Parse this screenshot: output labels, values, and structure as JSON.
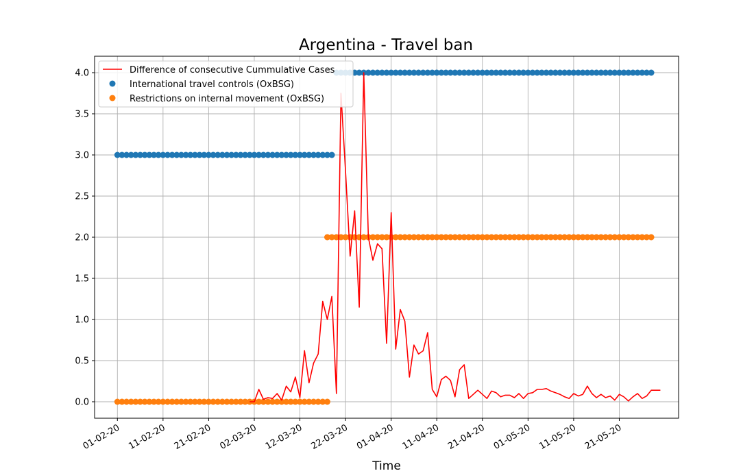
{
  "chart_data": {
    "type": "line",
    "title": "Argentina - Travel ban",
    "xlabel": "Time",
    "ylabel": "",
    "x_start_date": "2020-02-01",
    "xlim": [
      "2020-01-27",
      "2020-06-03"
    ],
    "ylim": [
      -0.2,
      4.2
    ],
    "grid": true,
    "legend_position": "upper-left",
    "x_tick_labels": [
      "01-02-20",
      "11-02-20",
      "21-02-20",
      "02-03-20",
      "12-03-20",
      "22-03-20",
      "01-04-20",
      "11-04-20",
      "21-04-20",
      "01-05-20",
      "11-05-20",
      "21-05-20"
    ],
    "x_tick_dates": [
      "2020-02-01",
      "2020-02-11",
      "2020-02-21",
      "2020-03-02",
      "2020-03-12",
      "2020-03-22",
      "2020-04-01",
      "2020-04-11",
      "2020-04-21",
      "2020-05-01",
      "2020-05-11",
      "2020-05-21"
    ],
    "y_ticks": [
      0.0,
      0.5,
      1.0,
      1.5,
      2.0,
      2.5,
      3.0,
      3.5,
      4.0
    ],
    "y_tick_labels": [
      "0.0",
      "0.5",
      "1.0",
      "1.5",
      "2.0",
      "2.5",
      "3.0",
      "3.5",
      "4.0"
    ],
    "series": [
      {
        "name": "Difference of consecutive Cummulative Cases",
        "kind": "line",
        "color": "#ff0000",
        "x": [
          "2020-03-01",
          "2020-03-02",
          "2020-03-03",
          "2020-03-04",
          "2020-03-05",
          "2020-03-06",
          "2020-03-07",
          "2020-03-08",
          "2020-03-09",
          "2020-03-10",
          "2020-03-11",
          "2020-03-12",
          "2020-03-13",
          "2020-03-14",
          "2020-03-15",
          "2020-03-16",
          "2020-03-17",
          "2020-03-18",
          "2020-03-19",
          "2020-03-20",
          "2020-03-21",
          "2020-03-22",
          "2020-03-23",
          "2020-03-24",
          "2020-03-25",
          "2020-03-26",
          "2020-03-27",
          "2020-03-28",
          "2020-03-29",
          "2020-03-30",
          "2020-03-31",
          "2020-04-01",
          "2020-04-02",
          "2020-04-03",
          "2020-04-04",
          "2020-04-05",
          "2020-04-06",
          "2020-04-07",
          "2020-04-08",
          "2020-04-09",
          "2020-04-10",
          "2020-04-11",
          "2020-04-12",
          "2020-04-13",
          "2020-04-14",
          "2020-04-15",
          "2020-04-16",
          "2020-04-17",
          "2020-04-18",
          "2020-04-19",
          "2020-04-20",
          "2020-04-21",
          "2020-04-22",
          "2020-04-23",
          "2020-04-24",
          "2020-04-25",
          "2020-04-26",
          "2020-04-27",
          "2020-04-28",
          "2020-04-29",
          "2020-04-30",
          "2020-05-01",
          "2020-05-02",
          "2020-05-03",
          "2020-05-04",
          "2020-05-05",
          "2020-05-06",
          "2020-05-07",
          "2020-05-08",
          "2020-05-09",
          "2020-05-10",
          "2020-05-11",
          "2020-05-12",
          "2020-05-13",
          "2020-05-14",
          "2020-05-15",
          "2020-05-16",
          "2020-05-17",
          "2020-05-18",
          "2020-05-19",
          "2020-05-20",
          "2020-05-21",
          "2020-05-22",
          "2020-05-23",
          "2020-05-24",
          "2020-05-25",
          "2020-05-26",
          "2020-05-27",
          "2020-05-28",
          "2020-05-29",
          "2020-05-30"
        ],
        "values": [
          0.0,
          0.0,
          0.15,
          0.03,
          0.05,
          0.04,
          0.1,
          0.02,
          0.19,
          0.12,
          0.3,
          0.05,
          0.62,
          0.23,
          0.47,
          0.58,
          1.22,
          1.0,
          1.28,
          0.1,
          3.75,
          2.8,
          1.77,
          2.32,
          1.15,
          4.0,
          2.0,
          1.72,
          1.92,
          1.86,
          0.71,
          2.3,
          0.64,
          1.12,
          0.98,
          0.3,
          0.69,
          0.58,
          0.62,
          0.84,
          0.15,
          0.06,
          0.27,
          0.31,
          0.26,
          0.06,
          0.39,
          0.45,
          0.04,
          0.09,
          0.14,
          0.09,
          0.04,
          0.13,
          0.11,
          0.06,
          0.08,
          0.08,
          0.05,
          0.1,
          0.04,
          0.1,
          0.11,
          0.15,
          0.15,
          0.16,
          0.13,
          0.11,
          0.09,
          0.06,
          0.04,
          0.1,
          0.07,
          0.09,
          0.19,
          0.1,
          0.05,
          0.09,
          0.05,
          0.07,
          0.02,
          0.09,
          0.06,
          0.01,
          0.06,
          0.1,
          0.04,
          0.07,
          0.14,
          0.14,
          0.14
        ]
      },
      {
        "name": "International travel controls (OxBSG)",
        "kind": "scatter",
        "color": "#1f77b4",
        "segments": [
          {
            "from": "2020-02-01",
            "to": "2020-03-19",
            "value": 3.0
          },
          {
            "from": "2020-03-20",
            "to": "2020-05-28",
            "value": 4.0
          }
        ]
      },
      {
        "name": "Restrictions on internal movement (OxBSG)",
        "kind": "scatter",
        "color": "#ff7f0e",
        "segments": [
          {
            "from": "2020-02-01",
            "to": "2020-03-18",
            "value": 0.0
          },
          {
            "from": "2020-03-18",
            "to": "2020-05-28",
            "value": 2.0
          }
        ]
      }
    ]
  }
}
